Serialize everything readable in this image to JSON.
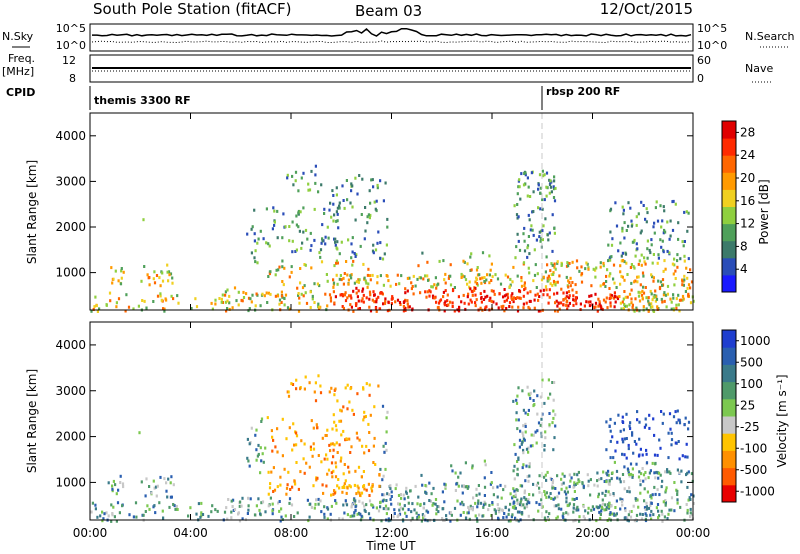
{
  "header": {
    "station": "South Pole Station (fitACF)",
    "beam": "Beam 03",
    "date": "12/Oct/2015"
  },
  "aux": {
    "nsky_label": "N.Sky",
    "nsearch_label": "N.Search",
    "freq_label": "Freq.",
    "freq_unit": "[MHz]",
    "cpid_label": "CPID",
    "nave_label": "Nave",
    "power_ticks_left": [
      "10^5",
      "10^0"
    ],
    "power_ticks_right": [
      "10^5",
      "10^0"
    ],
    "freq_ticks": [
      "12",
      "8"
    ],
    "nave_ticks": [
      "60",
      "0"
    ],
    "cpid_segments": [
      {
        "label": "themis 3300 RF",
        "start_hour": 0
      },
      {
        "label": "rbsp 200 RF",
        "start_hour": 18
      }
    ]
  },
  "chart_data": [
    {
      "type": "heatmap",
      "title": "",
      "xlabel": "Time UT",
      "ylabel": "Slant Range [km]",
      "x_ticks": [
        "00:00",
        "04:00",
        "08:00",
        "12:00",
        "16:00",
        "20:00",
        "00:00"
      ],
      "x_range_hours": [
        0,
        24
      ],
      "y_ticks": [
        1000,
        2000,
        3000,
        4000
      ],
      "y_range_km": [
        180,
        4500
      ],
      "colorbar": {
        "label": "Power [dB]",
        "ticks": [
          "4",
          "8",
          "12",
          "16",
          "20",
          "24",
          "28"
        ],
        "range": [
          0,
          30
        ],
        "colors": [
          "#1a1aff",
          "#2a4db8",
          "#3c7a6a",
          "#4fa05a",
          "#8fcf3f",
          "#f0d020",
          "#ff9a00",
          "#ff6600",
          "#ff2a00",
          "#e00000"
        ]
      },
      "vertical_marker_hour": 18
    },
    {
      "type": "heatmap",
      "title": "",
      "xlabel": "Time UT",
      "ylabel": "Slant Range [km]",
      "x_ticks": [
        "00:00",
        "04:00",
        "08:00",
        "12:00",
        "16:00",
        "20:00",
        "00:00"
      ],
      "x_range_hours": [
        0,
        24
      ],
      "y_ticks": [
        1000,
        2000,
        3000,
        4000
      ],
      "y_range_km": [
        180,
        4500
      ],
      "colorbar": {
        "label": "Velocity [m s⁻¹]",
        "ticks": [
          "1000",
          "500",
          "100",
          "25",
          "-25",
          "-100",
          "-500",
          "-1000"
        ],
        "colors": [
          "#1f3ecf",
          "#2a5fb0",
          "#3a7a8a",
          "#4f9a6a",
          "#7cc850",
          "#c8c8c8",
          "#ffc400",
          "#ff9000",
          "#ff5a00",
          "#e80000"
        ]
      },
      "vertical_marker_hour": 18
    }
  ],
  "scatter_clusters": [
    {
      "t0": 0.7,
      "t1": 1.3,
      "r0": 700,
      "r1": 1200,
      "d": 0.55
    },
    {
      "t0": 1.6,
      "t1": 2.1,
      "r0": 2100,
      "r1": 2300,
      "d": 0.1
    },
    {
      "t0": 2.0,
      "t1": 3.3,
      "r0": 700,
      "r1": 1200,
      "d": 0.5
    },
    {
      "t0": 0.0,
      "t1": 24,
      "r0": 180,
      "r1": 600,
      "d": 0.35
    },
    {
      "t0": 5.3,
      "t1": 7.0,
      "r0": 300,
      "r1": 700,
      "d": 0.35
    },
    {
      "t0": 6.2,
      "t1": 10.0,
      "r0": 1200,
      "r1": 2500,
      "d": 0.25
    },
    {
      "t0": 7.8,
      "t1": 9.2,
      "r0": 2800,
      "r1": 3400,
      "d": 0.3
    },
    {
      "t0": 7.0,
      "t1": 10.2,
      "r0": 500,
      "r1": 1200,
      "d": 0.3
    },
    {
      "t0": 9.5,
      "t1": 11.8,
      "r0": 500,
      "r1": 3200,
      "d": 0.25
    },
    {
      "t0": 10.0,
      "t1": 17.5,
      "r0": 180,
      "r1": 1000,
      "d": 0.55
    },
    {
      "t0": 16.8,
      "t1": 18.5,
      "r0": 500,
      "r1": 3300,
      "d": 0.4
    },
    {
      "t0": 18.0,
      "t1": 24.0,
      "r0": 180,
      "r1": 1300,
      "d": 0.55
    },
    {
      "t0": 20.5,
      "t1": 23.8,
      "r0": 1200,
      "r1": 2600,
      "d": 0.35
    },
    {
      "t0": 13.0,
      "t1": 16.0,
      "r0": 900,
      "r1": 1500,
      "d": 0.2
    }
  ]
}
